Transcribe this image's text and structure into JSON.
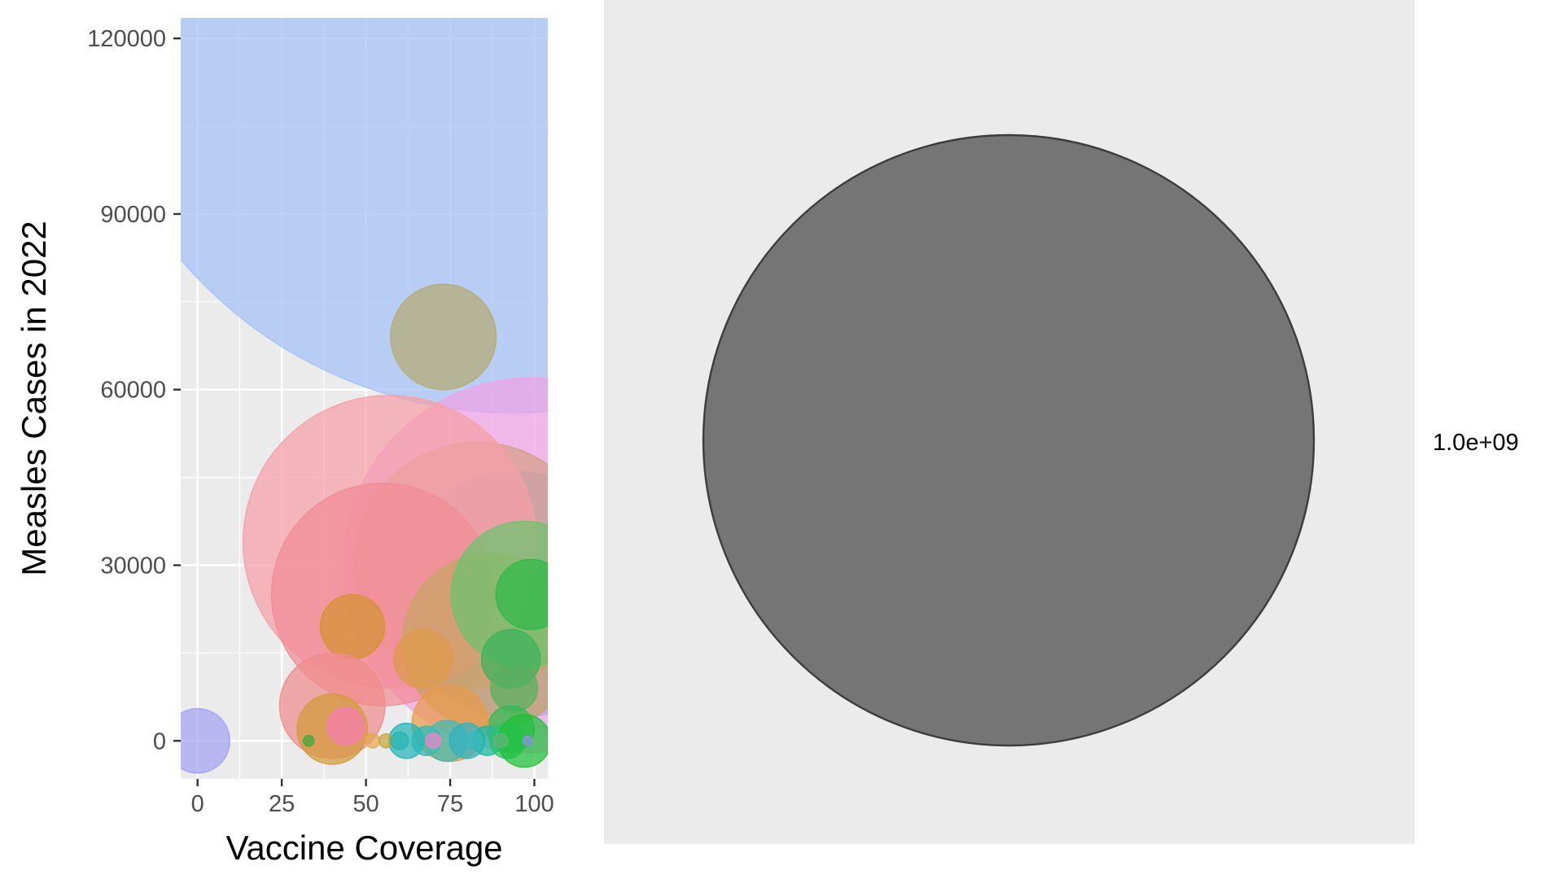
{
  "chart_data": {
    "type": "scatter",
    "title": "",
    "xlabel": "Vaccine Coverage",
    "ylabel": "Measles Cases in 2022",
    "xlim": [
      -5,
      104
    ],
    "ylim": [
      -6500,
      123500
    ],
    "x_ticks": [
      0,
      25,
      50,
      75,
      100
    ],
    "y_ticks": [
      0,
      30000,
      60000,
      90000,
      120000
    ],
    "x_tick_labels": [
      "0",
      "25",
      "50",
      "75",
      "100"
    ],
    "y_tick_labels": [
      "0",
      "30000",
      "60000",
      "90000",
      "120000"
    ],
    "grid": true,
    "size_scale_note": "bubble radius in y data units",
    "points": [
      {
        "x": 94,
        "y": 131000,
        "r": 75000,
        "color": "#a3c1f5"
      },
      {
        "x": 99,
        "y": 30000,
        "r": 32000,
        "color": "#f0a3e6"
      },
      {
        "x": 95,
        "y": 25000,
        "r": 21000,
        "color": "#b1a8ee"
      },
      {
        "x": 83,
        "y": 30000,
        "r": 21000,
        "color": "#d69f86"
      },
      {
        "x": 57,
        "y": 34000,
        "r": 25000,
        "color": "#f5a0a6"
      },
      {
        "x": 55,
        "y": 25000,
        "r": 19000,
        "color": "#f18c96"
      },
      {
        "x": 87,
        "y": 17000,
        "r": 15000,
        "color": "#c8a464"
      },
      {
        "x": 73,
        "y": 69000,
        "r": 9000,
        "color": "#b5ab71"
      },
      {
        "x": 46,
        "y": 19500,
        "r": 5500,
        "color": "#d59232"
      },
      {
        "x": 97,
        "y": 25000,
        "r": 12500,
        "color": "#6cc36e"
      },
      {
        "x": 99,
        "y": 25000,
        "r": 6000,
        "color": "#2fb94a"
      },
      {
        "x": 93,
        "y": 14000,
        "r": 5000,
        "color": "#3cb35a"
      },
      {
        "x": 94,
        "y": 9000,
        "r": 4000,
        "color": "#57b05f"
      },
      {
        "x": 93,
        "y": 2000,
        "r": 4000,
        "color": "#2fbd53"
      },
      {
        "x": 40,
        "y": 6000,
        "r": 9000,
        "color": "#ee8c8c"
      },
      {
        "x": 40,
        "y": 2000,
        "r": 6000,
        "color": "#d49b3a"
      },
      {
        "x": 44,
        "y": 2500,
        "r": 3200,
        "color": "#f57db0"
      },
      {
        "x": 67,
        "y": 14000,
        "r": 5000,
        "color": "#dc9a4a"
      },
      {
        "x": 75,
        "y": 3000,
        "r": 6500,
        "color": "#e79a4a"
      },
      {
        "x": 62,
        "y": 0,
        "r": 3000,
        "color": "#22b5b5"
      },
      {
        "x": 68,
        "y": 0,
        "r": 2500,
        "color": "#2ab9b5"
      },
      {
        "x": 74,
        "y": 0,
        "r": 3500,
        "color": "#3dbdb2"
      },
      {
        "x": 80,
        "y": 0,
        "r": 3000,
        "color": "#2fb2c0"
      },
      {
        "x": 86,
        "y": 0,
        "r": 2500,
        "color": "#18b9a0"
      },
      {
        "x": 92,
        "y": 0,
        "r": 3000,
        "color": "#2fc26b"
      },
      {
        "x": 97,
        "y": 0,
        "r": 4500,
        "color": "#1fc03a"
      },
      {
        "x": 0,
        "y": 0,
        "r": 5500,
        "color": "#a4a2f4"
      },
      {
        "x": 33,
        "y": 0,
        "r": 900,
        "color": "#3aab3a"
      },
      {
        "x": 52,
        "y": 0,
        "r": 1200,
        "color": "#e7a64f"
      },
      {
        "x": 56,
        "y": 0,
        "r": 1200,
        "color": "#c8a53a"
      },
      {
        "x": 60,
        "y": 0,
        "r": 1500,
        "color": "#27b4b0"
      },
      {
        "x": 70,
        "y": 0,
        "r": 1300,
        "color": "#f084c8"
      },
      {
        "x": 82,
        "y": 0,
        "r": 1500,
        "color": "#3ab8c0"
      },
      {
        "x": 90,
        "y": 0,
        "r": 1200,
        "color": "#67b07a"
      },
      {
        "x": 98,
        "y": 0,
        "r": 800,
        "color": "#8d8fe6"
      }
    ]
  },
  "legend": {
    "label": "1.0e+09",
    "key_fill": "#757575",
    "key_stroke": "#3d3d3d",
    "panel_bg": "#ebebeb"
  },
  "colors": {
    "panel_bg": "#ebebeb",
    "grid_major": "#ffffff",
    "tick_text": "#4d4d4d",
    "tick_mark": "#333333"
  }
}
